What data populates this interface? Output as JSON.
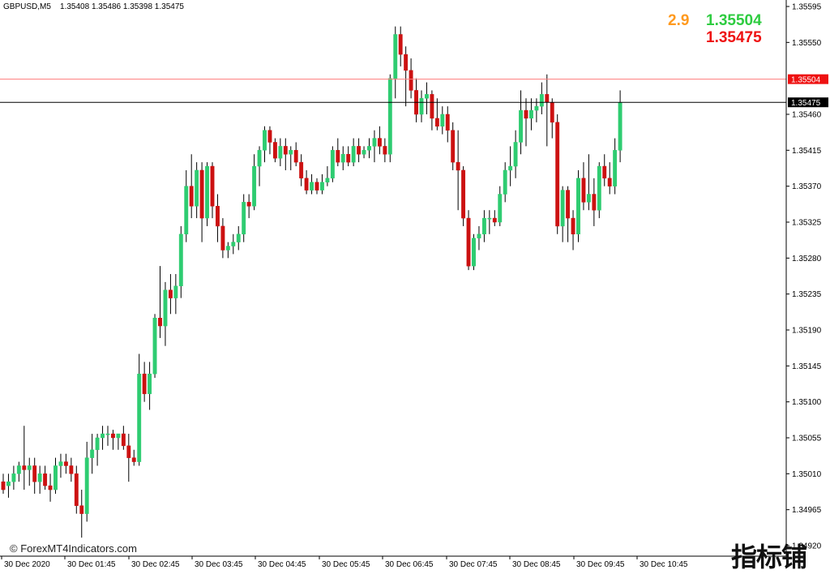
{
  "header": {
    "symbol": "GBPUSD,M5",
    "ohlc": "1.35408 1.35486 1.35398 1.35475"
  },
  "quote_panel": {
    "spread": "2.9",
    "ask": "1.35504",
    "bid": "1.35475",
    "colors": {
      "spread": "#ff9a1f",
      "ask": "#2ecc40",
      "bid": "#ee1111"
    }
  },
  "watermark": {
    "text": "© ForexMT4Indicators.com",
    "logo_text": "指标铺"
  },
  "chart_data": {
    "type": "candlestick",
    "symbol": "GBPUSD",
    "timeframe": "M5",
    "ylim": [
      1.3493,
      1.3559
    ],
    "y_ticks": [
      "1.35595",
      "1.35550",
      "1.35460",
      "1.35415",
      "1.35370",
      "1.35325",
      "1.35280",
      "1.35235",
      "1.35190",
      "1.35145",
      "1.35100",
      "1.35055",
      "1.35010",
      "1.34965"
    ],
    "y_ticks_partial": [
      "1.34920"
    ],
    "x_ticks": [
      "30 Dec 2020",
      "30 Dec 01:45",
      "30 Dec 02:45",
      "30 Dec 03:45",
      "30 Dec 04:45",
      "30 Dec 05:45",
      "30 Dec 06:45",
      "30 Dec 07:45",
      "30 Dec 08:45",
      "30 Dec 09:45",
      "30 Dec 10:45"
    ],
    "ask_line": {
      "value": 1.35504,
      "label": "1.35504",
      "color": "#ff7b7b"
    },
    "bid_line": {
      "value": 1.35475,
      "label": "1.35475",
      "color": "#000000"
    },
    "colors": {
      "up": "#2ecc71",
      "down": "#cc1111",
      "wick": "#000000"
    },
    "candles": [
      [
        1.35,
        1.3501,
        1.34985,
        1.3499
      ],
      [
        1.34995,
        1.3501,
        1.3498,
        1.35
      ],
      [
        1.35,
        1.3502,
        1.3499,
        1.3501
      ],
      [
        1.3501,
        1.35025,
        1.35,
        1.3502
      ],
      [
        1.3502,
        1.3507,
        1.3499,
        1.35015
      ],
      [
        1.35015,
        1.3503,
        1.34995,
        1.3502
      ],
      [
        1.3502,
        1.3503,
        1.34985,
        1.35
      ],
      [
        1.35,
        1.3502,
        1.34985,
        1.3501
      ],
      [
        1.3501,
        1.3502,
        1.3499,
        1.34995
      ],
      [
        1.34995,
        1.3501,
        1.34975,
        1.3499
      ],
      [
        1.3499,
        1.3503,
        1.34985,
        1.3502
      ],
      [
        1.3502,
        1.35035,
        1.35005,
        1.35025
      ],
      [
        1.35025,
        1.35035,
        1.3501,
        1.3502
      ],
      [
        1.3502,
        1.3503,
        1.35,
        1.3501
      ],
      [
        1.3501,
        1.3502,
        1.3496,
        1.3497
      ],
      [
        1.3497,
        1.3499,
        1.3493,
        1.3496
      ],
      [
        1.3496,
        1.3505,
        1.3495,
        1.3503
      ],
      [
        1.3503,
        1.3506,
        1.3501,
        1.3504
      ],
      [
        1.3504,
        1.3506,
        1.3502,
        1.35055
      ],
      [
        1.35055,
        1.3507,
        1.3504,
        1.3506
      ],
      [
        1.3506,
        1.3507,
        1.35045,
        1.3506
      ],
      [
        1.3506,
        1.35065,
        1.3504,
        1.35055
      ],
      [
        1.35055,
        1.3506,
        1.3504,
        1.3506
      ],
      [
        1.3506,
        1.3507,
        1.3504,
        1.35045
      ],
      [
        1.35045,
        1.3506,
        1.35,
        1.3503
      ],
      [
        1.3503,
        1.3504,
        1.3502,
        1.35025
      ],
      [
        1.35025,
        1.3516,
        1.3502,
        1.35135
      ],
      [
        1.35135,
        1.3515,
        1.351,
        1.3511
      ],
      [
        1.3511,
        1.3515,
        1.3509,
        1.35135
      ],
      [
        1.35135,
        1.3521,
        1.3513,
        1.35205
      ],
      [
        1.35205,
        1.3527,
        1.3518,
        1.35195
      ],
      [
        1.35195,
        1.3525,
        1.3517,
        1.3524
      ],
      [
        1.3524,
        1.3526,
        1.3521,
        1.3523
      ],
      [
        1.3523,
        1.3526,
        1.3521,
        1.35245
      ],
      [
        1.35245,
        1.3532,
        1.3523,
        1.3531
      ],
      [
        1.3531,
        1.3539,
        1.353,
        1.3537
      ],
      [
        1.3537,
        1.3541,
        1.3533,
        1.35345
      ],
      [
        1.35345,
        1.354,
        1.3533,
        1.3539
      ],
      [
        1.3539,
        1.354,
        1.353,
        1.3533
      ],
      [
        1.3533,
        1.354,
        1.3532,
        1.35395
      ],
      [
        1.35395,
        1.354,
        1.3533,
        1.35345
      ],
      [
        1.35345,
        1.3536,
        1.353,
        1.3532
      ],
      [
        1.3532,
        1.3533,
        1.3528,
        1.3529
      ],
      [
        1.3529,
        1.353,
        1.3528,
        1.35295
      ],
      [
        1.35295,
        1.3531,
        1.35285,
        1.353
      ],
      [
        1.353,
        1.3532,
        1.3529,
        1.3531
      ],
      [
        1.3531,
        1.3536,
        1.353,
        1.3535
      ],
      [
        1.3535,
        1.3536,
        1.3533,
        1.35345
      ],
      [
        1.35345,
        1.3541,
        1.3534,
        1.35395
      ],
      [
        1.35395,
        1.3542,
        1.3537,
        1.35415
      ],
      [
        1.35415,
        1.35445,
        1.354,
        1.3544
      ],
      [
        1.3544,
        1.35445,
        1.3541,
        1.35425
      ],
      [
        1.35425,
        1.3543,
        1.354,
        1.35405
      ],
      [
        1.35405,
        1.3543,
        1.35395,
        1.3542
      ],
      [
        1.3542,
        1.3543,
        1.3539,
        1.3541
      ],
      [
        1.3541,
        1.3542,
        1.3539,
        1.35415
      ],
      [
        1.35415,
        1.35425,
        1.35395,
        1.354
      ],
      [
        1.354,
        1.3541,
        1.3537,
        1.3538
      ],
      [
        1.3538,
        1.3539,
        1.3536,
        1.35365
      ],
      [
        1.35365,
        1.35385,
        1.3536,
        1.35375
      ],
      [
        1.35375,
        1.3538,
        1.3536,
        1.35365
      ],
      [
        1.35365,
        1.35385,
        1.3536,
        1.35375
      ],
      [
        1.35375,
        1.35395,
        1.3537,
        1.3538
      ],
      [
        1.3538,
        1.3542,
        1.35375,
        1.35415
      ],
      [
        1.35415,
        1.3543,
        1.35395,
        1.354
      ],
      [
        1.354,
        1.3542,
        1.3539,
        1.3541
      ],
      [
        1.3541,
        1.3542,
        1.35395,
        1.354
      ],
      [
        1.354,
        1.3543,
        1.35395,
        1.3542
      ],
      [
        1.3542,
        1.3543,
        1.354,
        1.3541
      ],
      [
        1.3541,
        1.3542,
        1.35405,
        1.35415
      ],
      [
        1.35415,
        1.3543,
        1.35405,
        1.3542
      ],
      [
        1.3542,
        1.3544,
        1.354,
        1.3543
      ],
      [
        1.3543,
        1.35445,
        1.3541,
        1.3542
      ],
      [
        1.3542,
        1.3543,
        1.354,
        1.3541
      ],
      [
        1.3541,
        1.3551,
        1.354,
        1.35505
      ],
      [
        1.35505,
        1.3557,
        1.3548,
        1.3556
      ],
      [
        1.3556,
        1.3557,
        1.3552,
        1.35535
      ],
      [
        1.35535,
        1.35545,
        1.3547,
        1.35515
      ],
      [
        1.35515,
        1.3553,
        1.3548,
        1.3549
      ],
      [
        1.3549,
        1.35505,
        1.3545,
        1.3546
      ],
      [
        1.3546,
        1.3549,
        1.3545,
        1.3548
      ],
      [
        1.3548,
        1.355,
        1.3546,
        1.35485
      ],
      [
        1.35485,
        1.3549,
        1.3544,
        1.35455
      ],
      [
        1.35455,
        1.3548,
        1.3544,
        1.35445
      ],
      [
        1.35445,
        1.3547,
        1.35435,
        1.3546
      ],
      [
        1.3546,
        1.3547,
        1.35425,
        1.3544
      ],
      [
        1.3544,
        1.3545,
        1.3539,
        1.354
      ],
      [
        1.354,
        1.3544,
        1.3534,
        1.3539
      ],
      [
        1.3539,
        1.35395,
        1.3532,
        1.3533
      ],
      [
        1.3533,
        1.3534,
        1.35265,
        1.3527
      ],
      [
        1.3527,
        1.3531,
        1.35265,
        1.35305
      ],
      [
        1.35305,
        1.3532,
        1.3529,
        1.3531
      ],
      [
        1.3531,
        1.3534,
        1.353,
        1.3533
      ],
      [
        1.3533,
        1.3534,
        1.3531,
        1.3533
      ],
      [
        1.3533,
        1.3534,
        1.3532,
        1.35325
      ],
      [
        1.35325,
        1.3537,
        1.3532,
        1.3536
      ],
      [
        1.3536,
        1.354,
        1.3535,
        1.3539
      ],
      [
        1.3539,
        1.3542,
        1.3537,
        1.35395
      ],
      [
        1.35395,
        1.3544,
        1.3538,
        1.35425
      ],
      [
        1.35425,
        1.3549,
        1.3541,
        1.35465
      ],
      [
        1.35465,
        1.3548,
        1.3542,
        1.35455
      ],
      [
        1.35455,
        1.3548,
        1.3544,
        1.35465
      ],
      [
        1.35465,
        1.3548,
        1.3545,
        1.3547
      ],
      [
        1.3547,
        1.355,
        1.3546,
        1.35485
      ],
      [
        1.35485,
        1.3551,
        1.3542,
        1.35475
      ],
      [
        1.35475,
        1.3548,
        1.3543,
        1.3545
      ],
      [
        1.3545,
        1.3546,
        1.3531,
        1.3532
      ],
      [
        1.3532,
        1.3537,
        1.353,
        1.35365
      ],
      [
        1.35365,
        1.3537,
        1.353,
        1.3533
      ],
      [
        1.3533,
        1.3534,
        1.3529,
        1.3531
      ],
      [
        1.3531,
        1.3539,
        1.353,
        1.3538
      ],
      [
        1.3538,
        1.354,
        1.3534,
        1.3535
      ],
      [
        1.3535,
        1.3541,
        1.3534,
        1.3536
      ],
      [
        1.3536,
        1.3538,
        1.3532,
        1.3534
      ],
      [
        1.3534,
        1.354,
        1.3533,
        1.35395
      ],
      [
        1.35395,
        1.3541,
        1.3537,
        1.3538
      ],
      [
        1.3538,
        1.354,
        1.3536,
        1.3537
      ],
      [
        1.3537,
        1.3543,
        1.3536,
        1.35415
      ],
      [
        1.35415,
        1.3549,
        1.354,
        1.35475
      ]
    ]
  }
}
